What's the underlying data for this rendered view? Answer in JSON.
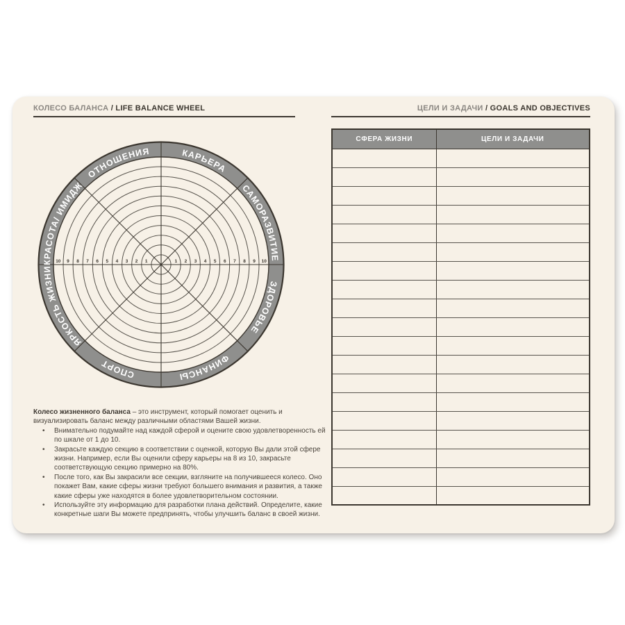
{
  "headers": {
    "left": {
      "ru": "КОЛЕСО БАЛАНСА ",
      "en": "/ LIFE BALANCE WHEEL"
    },
    "right": {
      "ru": "ЦЕЛИ И ЗАДАЧИ ",
      "en": "/ GOALS AND OBJECTIVES"
    }
  },
  "wheel": {
    "type": "radial-template",
    "sectors": [
      {
        "label": "КАРЬЕРА"
      },
      {
        "label": "САМОРАЗВИТИЕ"
      },
      {
        "label": "ЗДОРОВЬЕ"
      },
      {
        "label": "ФИНАНСЫ"
      },
      {
        "label": "СПОРТ"
      },
      {
        "label": "ЯРКОСТЬ ЖИЗНИ"
      },
      {
        "label": "КРАСОТА/ ИМИДЖ"
      },
      {
        "label": "ОТНОШЕНИЯ"
      }
    ],
    "ticks": [
      1,
      2,
      3,
      4,
      5,
      6,
      7,
      8,
      9,
      10
    ],
    "scale_min": 1,
    "scale_max": 10
  },
  "description": {
    "intro_bold": "Колесо жизненного баланса",
    "intro_rest": " – это инструмент, который помогает оценить и визуализировать баланс между различными областями Вашей жизни.",
    "bullets": [
      "Внимательно подумайте над каждой сферой и оцените свою удовлетворенность ей по шкале от 1 до 10.",
      "Закрасьте каждую секцию в соответствии с оценкой, которую Вы дали этой сфере жизни. Например, если Вы оценили сферу карьеры на 8 из 10, закрасьте соответствующую секцию примерно на 80%.",
      "После того, как Вы закрасили все секции, взгляните на получившееся колесо. Оно покажет Вам, какие сферы жизни требуют большего внимания и развития, а также какие сферы уже находятся в более удовлетворительном состоянии.",
      "Используйте эту информацию для разработки плана действий. Определите, какие конкретные шаги Вы можете предпринять, чтобы улучшить баланс в своей жизни."
    ]
  },
  "table": {
    "headers": [
      "СФЕРА ЖИЗНИ",
      "ЦЕЛИ И ЗАДАЧИ"
    ],
    "empty_rows": 19
  },
  "colors": {
    "page_bg": "#f7f1e7",
    "ring_gray": "#8f8f8d",
    "dark_line": "#3b362f",
    "grid_line": "#57534c",
    "text": "#4a443c",
    "muted_header": "#8a8681",
    "white": "#ffffff"
  }
}
